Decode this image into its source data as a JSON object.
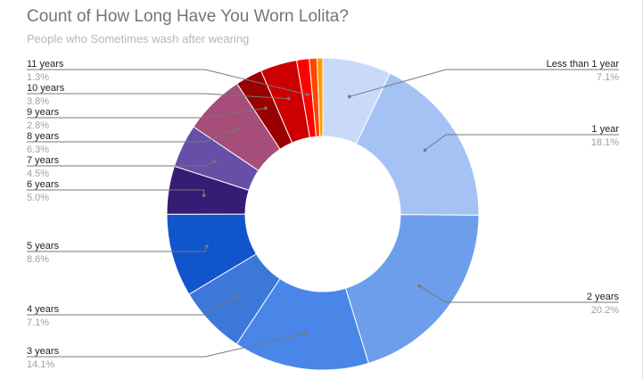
{
  "chart_data": {
    "type": "pie",
    "donut": true,
    "title": "Count of How Long Have You Worn Lolita?",
    "subtitle": "People who Sometimes wash after wearing",
    "slices": [
      {
        "label": "Less than 1 year",
        "pct_text": "7.1%",
        "value": 7.1,
        "color": "#c9daf8"
      },
      {
        "label": "1 year",
        "pct_text": "18.1%",
        "value": 18.1,
        "color": "#a4c2f4"
      },
      {
        "label": "2 years",
        "pct_text": "20.2%",
        "value": 20.2,
        "color": "#6d9eeb"
      },
      {
        "label": "3 years",
        "pct_text": "14.1%",
        "value": 14.1,
        "color": "#4a86e8"
      },
      {
        "label": "4 years",
        "pct_text": "7.1%",
        "value": 7.1,
        "color": "#3c78d8"
      },
      {
        "label": "5 years",
        "pct_text": "8.6%",
        "value": 8.6,
        "color": "#1155cc"
      },
      {
        "label": "6 years",
        "pct_text": "5.0%",
        "value": 5.0,
        "color": "#351c75"
      },
      {
        "label": "7 years",
        "pct_text": "4.5%",
        "value": 4.5,
        "color": "#674ea7"
      },
      {
        "label": "8 years",
        "pct_text": "6.3%",
        "value": 6.3,
        "color": "#a64d79"
      },
      {
        "label": "9 years",
        "pct_text": "2.8%",
        "value": 2.8,
        "color": "#990000"
      },
      {
        "label": "10 years",
        "pct_text": "3.8%",
        "value": 3.8,
        "color": "#cc0000"
      },
      {
        "label": "11 years",
        "pct_text": "1.3%",
        "value": 1.3,
        "color": "#ff0000"
      },
      {
        "label": "",
        "pct_text": "",
        "value": 0.8,
        "color": "#ff4500"
      },
      {
        "label": "",
        "pct_text": "",
        "value": 0.6,
        "color": "#ff9900"
      }
    ],
    "legend": "callout-labels"
  }
}
